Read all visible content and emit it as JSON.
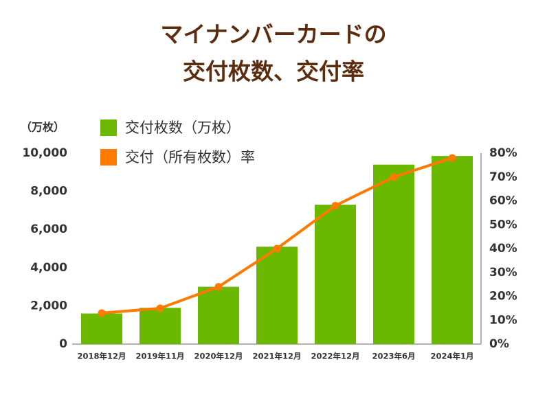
{
  "chart_data": {
    "type": "bar_line",
    "title": [
      "マイナンバーカードの",
      "交付枚数、交付率"
    ],
    "y_label": "（万枚）",
    "categories": [
      "2018年12月",
      "2019年11月",
      "2020年12月",
      "2021年12月",
      "2022年12月",
      "2023年6月",
      "2024年1月"
    ],
    "series": [
      {
        "name": "交付枚数（万枚）",
        "color": "#6ab800",
        "type": "bar",
        "values": [
          1600,
          1900,
          3000,
          5100,
          7300,
          9400,
          9850
        ]
      },
      {
        "name": "交付（所有枚数）率",
        "color": "#ff7a00",
        "type": "line",
        "axis": "y2",
        "values": [
          13,
          15,
          24,
          40,
          58,
          70,
          78
        ]
      }
    ],
    "ylim": [
      0,
      10000
    ],
    "yticks": [
      0,
      {
        "value": 2000,
        "label": "2,000"
      },
      {
        "value": 4000,
        "label": "4,000"
      },
      {
        "value": 6000,
        "label": "6,000"
      },
      {
        "value": 8000,
        "label": "8,000"
      },
      {
        "value": 10000,
        "label": "10,000"
      }
    ],
    "y2lim": [
      0,
      80
    ],
    "y2ticks": [
      {
        "value": 0,
        "label": "0%"
      },
      {
        "value": 10,
        "label": "10%"
      },
      {
        "value": 20,
        "label": "20%"
      },
      {
        "value": 30,
        "label": "30%"
      },
      {
        "value": 40,
        "label": "40%"
      },
      {
        "value": 50,
        "label": "50%"
      },
      {
        "value": 60,
        "label": "60%"
      },
      {
        "value": 70,
        "label": "70%"
      },
      {
        "value": 80,
        "label": "80%"
      }
    ]
  }
}
